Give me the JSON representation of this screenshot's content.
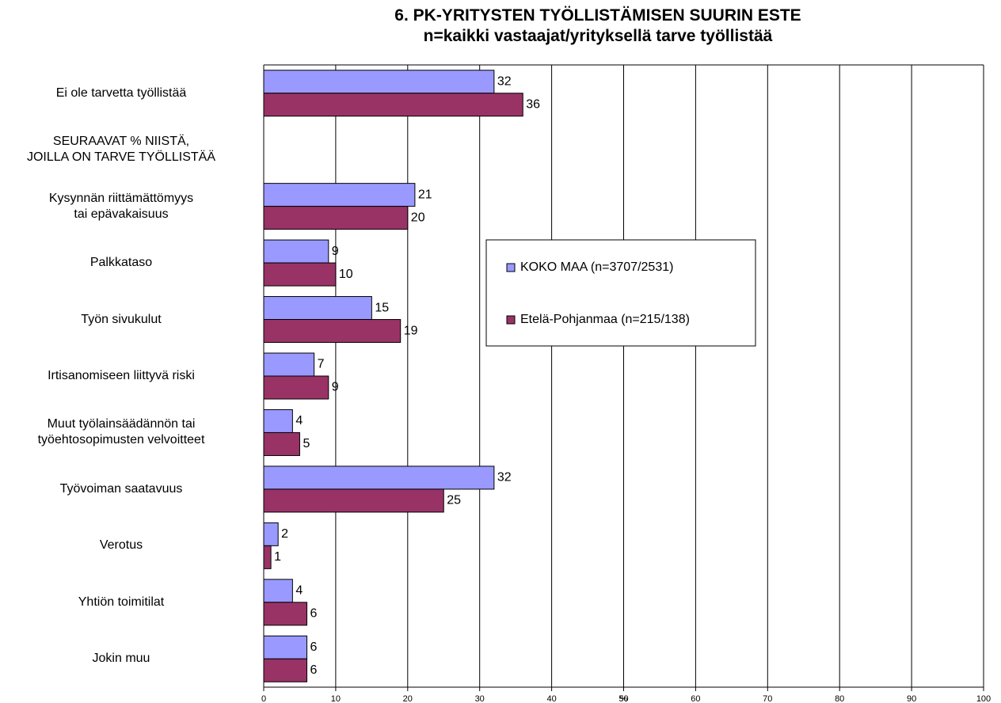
{
  "chart_data": {
    "type": "hbar",
    "title": "6. PK-YRITYSTEN TYÖLLISTÄMISEN SUURIN ESTE",
    "subtitle": "n=kaikki vastaajat/yrityksellä tarve työllistää",
    "x_label": "%",
    "categories": [
      "Ei ole tarvetta työllistää",
      "SEURAAVAT % NIISTÄ,\nJOILLA ON TARVE TYÖLLISTÄÄ",
      "Kysynnän riittämättömyys\ntai epävakaisuus",
      "Palkkataso",
      "Työn sivukulut",
      "Irtisanomiseen liittyvä riski",
      "Muut työlainsäädännön tai\ntyöehtosopimusten velvoitteet",
      "Työvoiman saatavuus",
      "Verotus",
      "Yhtiön toimitilat",
      "Jokin muu"
    ],
    "series": [
      {
        "name": "KOKO MAA (n=3707/2531)",
        "color": "#9999ff",
        "values": [
          32,
          null,
          21,
          9,
          15,
          7,
          4,
          32,
          2,
          4,
          6
        ]
      },
      {
        "name": "Etelä-Pohjanmaa (n=215/138)",
        "color": "#993366",
        "values": [
          36,
          null,
          20,
          10,
          19,
          9,
          5,
          25,
          1,
          6,
          6
        ]
      }
    ],
    "xlim": [
      0,
      100
    ],
    "xticks": [
      0,
      10,
      20,
      30,
      40,
      50,
      60,
      70,
      80,
      90,
      100
    ],
    "grid": true
  }
}
